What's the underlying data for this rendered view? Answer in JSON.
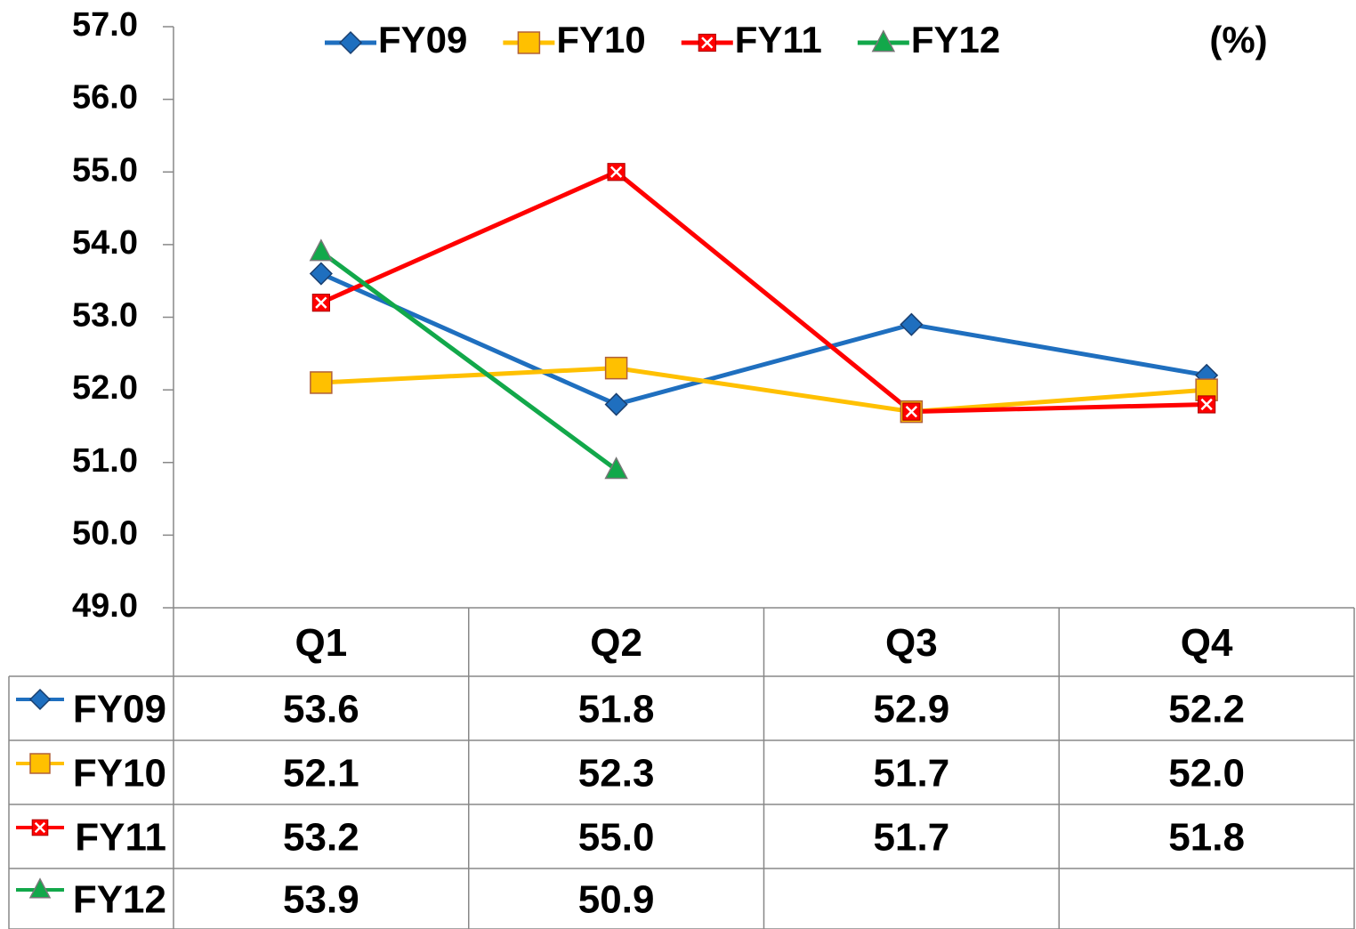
{
  "chart_data": {
    "type": "line",
    "unit_label": "(%)",
    "categories": [
      "Q1",
      "Q2",
      "Q3",
      "Q4"
    ],
    "series": [
      {
        "name": "FY09",
        "color": "#1f6fbf",
        "marker": "diamond",
        "values": [
          53.6,
          51.8,
          52.9,
          52.2
        ],
        "value_labels": [
          "53.6",
          "51.8",
          "52.9",
          "52.2"
        ]
      },
      {
        "name": "FY10",
        "color": "#ffc000",
        "marker": "square",
        "values": [
          52.1,
          52.3,
          51.7,
          52.0
        ],
        "value_labels": [
          "52.1",
          "52.3",
          "51.7",
          "52.0"
        ]
      },
      {
        "name": "FY11",
        "color": "#ff0000",
        "marker": "x-square",
        "values": [
          53.2,
          55.0,
          51.7,
          51.8
        ],
        "value_labels": [
          "53.2",
          "55.0",
          "51.7",
          "51.8"
        ]
      },
      {
        "name": "FY12",
        "color": "#12a84a",
        "marker": "triangle",
        "values": [
          53.9,
          50.9,
          null,
          null
        ],
        "value_labels": [
          "53.9",
          "50.9",
          null,
          null
        ]
      }
    ],
    "ylim": [
      49,
      57
    ],
    "yticks": [
      {
        "value": 49,
        "label": "49.0"
      },
      {
        "value": 50,
        "label": "50.0"
      },
      {
        "value": 51,
        "label": "51.0"
      },
      {
        "value": 52,
        "label": "52.0"
      },
      {
        "value": 53,
        "label": "53.0"
      },
      {
        "value": 54,
        "label": "54.0"
      },
      {
        "value": 55,
        "label": "55.0"
      },
      {
        "value": 56,
        "label": "56.0"
      },
      {
        "value": 57,
        "label": "57.0"
      }
    ],
    "legend": "top",
    "data_table": true
  }
}
